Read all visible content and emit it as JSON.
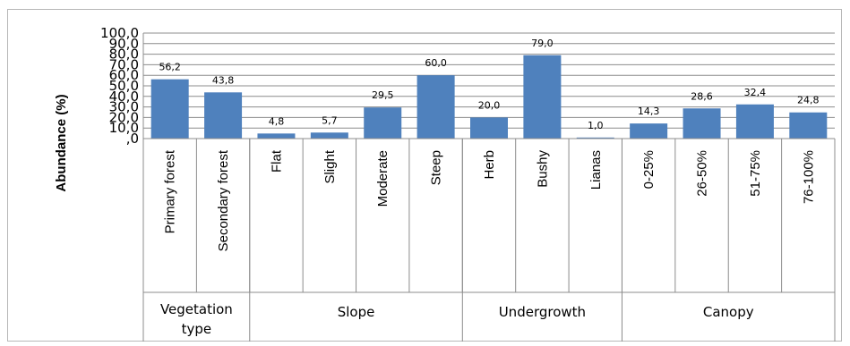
{
  "chart_data": {
    "type": "bar",
    "ylabel": "Abundance (%)",
    "ylim": [
      0,
      100
    ],
    "y_ticks": [
      "100,0",
      "90,0",
      "80,0",
      "70,0",
      "60,0",
      "50,0",
      "40,0",
      "30,0",
      "20,0",
      "10,0",
      ",0"
    ],
    "grid": true,
    "bar_color": "#4f81bd",
    "bars": [
      {
        "label": "Primary forest",
        "value": 56.2,
        "display": "56,2"
      },
      {
        "label": "Secondary forest",
        "value": 43.8,
        "display": "43,8"
      },
      {
        "label": "Flat",
        "value": 4.8,
        "display": "4,8"
      },
      {
        "label": "Slight",
        "value": 5.7,
        "display": "5,7"
      },
      {
        "label": "Moderate",
        "value": 29.5,
        "display": "29,5"
      },
      {
        "label": "Steep",
        "value": 60.0,
        "display": "60,0"
      },
      {
        "label": "Herb",
        "value": 20.0,
        "display": "20,0"
      },
      {
        "label": "Bushy",
        "value": 79.0,
        "display": "79,0"
      },
      {
        "label": "Lianas",
        "value": 1.0,
        "display": "1,0"
      },
      {
        "label": "0-25%",
        "value": 14.3,
        "display": "14,3"
      },
      {
        "label": "26-50%",
        "value": 28.6,
        "display": "28,6"
      },
      {
        "label": "51-75%",
        "value": 32.4,
        "display": "32,4"
      },
      {
        "label": "76-100%",
        "value": 24.8,
        "display": "24,8"
      }
    ],
    "groups": [
      {
        "lines": [
          "Vegetation",
          "type"
        ],
        "count": 2
      },
      {
        "lines": [
          "Slope"
        ],
        "count": 4
      },
      {
        "lines": [
          "Undergrowth"
        ],
        "count": 3
      },
      {
        "lines": [
          "Canopy"
        ],
        "count": 4
      }
    ]
  }
}
